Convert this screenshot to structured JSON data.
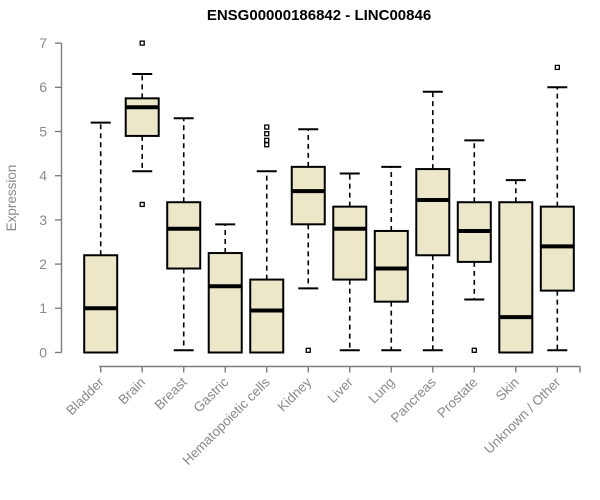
{
  "chart_data": {
    "type": "boxplot",
    "title": "ENSG00000186842 - LINC00846",
    "xlabel": "",
    "ylabel": "Expression",
    "ylim": [
      0,
      7
    ],
    "yticks": [
      0,
      1,
      2,
      3,
      4,
      5,
      6,
      7
    ],
    "grid": false,
    "legend": null,
    "categories": [
      "Bladder",
      "Brain",
      "Breast",
      "Gastric",
      "Hematopoietic cells",
      "Kidney",
      "Liver",
      "Lung",
      "Pancreas",
      "Prostate",
      "Skin",
      "Unknown / Other"
    ],
    "boxes": [
      {
        "category": "Bladder",
        "whisker_low": 0,
        "q1": 0,
        "median": 1.0,
        "q3": 2.2,
        "whisker_high": 5.2,
        "outliers": []
      },
      {
        "category": "Brain",
        "whisker_low": 4.1,
        "q1": 4.9,
        "median": 5.55,
        "q3": 5.75,
        "whisker_high": 6.3,
        "outliers": [
          7.0,
          3.35
        ]
      },
      {
        "category": "Breast",
        "whisker_low": 0.05,
        "q1": 1.9,
        "median": 2.8,
        "q3": 3.4,
        "whisker_high": 5.3,
        "outliers": []
      },
      {
        "category": "Gastric",
        "whisker_low": 0,
        "q1": 0,
        "median": 1.5,
        "q3": 2.25,
        "whisker_high": 2.9,
        "outliers": []
      },
      {
        "category": "Hematopoietic cells",
        "whisker_low": 0,
        "q1": 0,
        "median": 0.95,
        "q3": 1.65,
        "whisker_high": 4.1,
        "outliers": [
          5.1,
          4.95,
          4.8,
          4.7
        ]
      },
      {
        "category": "Kidney",
        "whisker_low": 1.45,
        "q1": 2.9,
        "median": 3.65,
        "q3": 4.2,
        "whisker_high": 5.05,
        "outliers": [
          0.05
        ]
      },
      {
        "category": "Liver",
        "whisker_low": 0.05,
        "q1": 1.65,
        "median": 2.8,
        "q3": 3.3,
        "whisker_high": 4.05,
        "outliers": []
      },
      {
        "category": "Lung",
        "whisker_low": 0.05,
        "q1": 1.15,
        "median": 1.9,
        "q3": 2.75,
        "whisker_high": 4.2,
        "outliers": []
      },
      {
        "category": "Pancreas",
        "whisker_low": 0.05,
        "q1": 2.2,
        "median": 3.45,
        "q3": 4.15,
        "whisker_high": 5.9,
        "outliers": []
      },
      {
        "category": "Prostate",
        "whisker_low": 1.2,
        "q1": 2.05,
        "median": 2.75,
        "q3": 3.4,
        "whisker_high": 4.8,
        "outliers": [
          0.05
        ]
      },
      {
        "category": "Skin",
        "whisker_low": 0,
        "q1": 0,
        "median": 0.8,
        "q3": 3.4,
        "whisker_high": 3.9,
        "outliers": []
      },
      {
        "category": "Unknown / Other",
        "whisker_low": 0.05,
        "q1": 1.4,
        "median": 2.4,
        "q3": 3.3,
        "whisker_high": 6.0,
        "outliers": [
          6.45
        ]
      }
    ]
  },
  "colors": {
    "box_fill": "#ece7c8",
    "box_stroke": "#000000",
    "median": "#000000",
    "axis": "#7e7e7e",
    "tick_label": "#8a8a8a",
    "title": "#000000",
    "background": "#ffffff"
  }
}
